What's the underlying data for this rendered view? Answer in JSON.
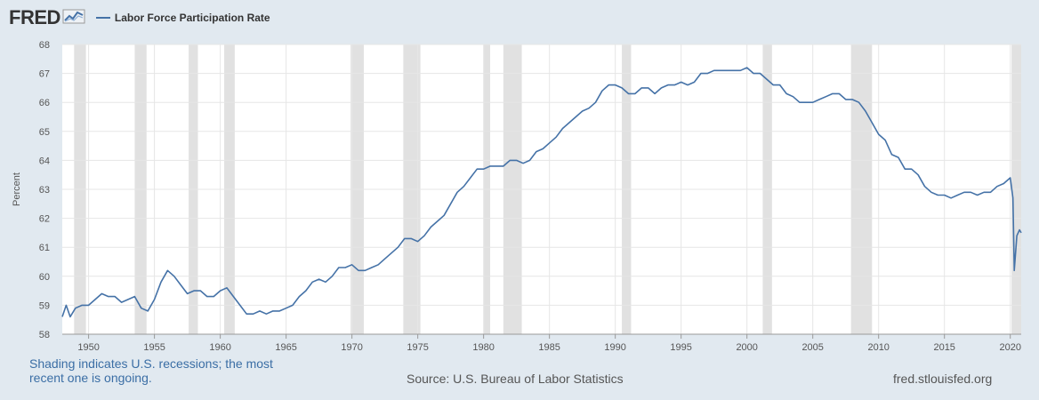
{
  "header": {
    "logo_text": "FRED",
    "logo_icon": "fred-chart-icon",
    "legend_label": "Labor Force Participation Rate"
  },
  "footer": {
    "note": "Shading indicates U.S. recessions; the most recent one is ongoing.",
    "source": "Source: U.S. Bureau of Labor Statistics",
    "site": "fred.stlouisfed.org"
  },
  "colors": {
    "series": "#4572a7",
    "recession": "#e1e1e1",
    "background": "#e1e9f0",
    "plot": "#ffffff",
    "note_text": "#3b6ea5"
  },
  "chart_data": {
    "type": "line",
    "title": "",
    "xlabel": "",
    "ylabel": "Percent",
    "xlim": [
      1948.0,
      2020.83
    ],
    "ylim": [
      58,
      68
    ],
    "x_ticks": [
      "1950",
      "1955",
      "1960",
      "1965",
      "1970",
      "1975",
      "1980",
      "1985",
      "1990",
      "1995",
      "2000",
      "2005",
      "2010",
      "2015",
      "2020"
    ],
    "y_ticks": [
      "58",
      "59",
      "60",
      "61",
      "62",
      "63",
      "64",
      "65",
      "66",
      "67",
      "68"
    ],
    "grid": true,
    "legend": "top-left",
    "recessions": [
      [
        "1948.9",
        "1949.8"
      ],
      [
        "1953.5",
        "1954.4"
      ],
      [
        "1957.6",
        "1958.3"
      ],
      [
        "1960.3",
        "1961.1"
      ],
      [
        "1969.9",
        "1970.9"
      ],
      [
        "1973.9",
        "1975.2"
      ],
      [
        "1980.0",
        "1980.5"
      ],
      [
        "1981.5",
        "1982.9"
      ],
      [
        "1990.5",
        "1991.2"
      ],
      [
        "2001.2",
        "2001.9"
      ],
      [
        "2007.9",
        "2009.5"
      ],
      [
        "2020.1",
        "2020.83"
      ]
    ],
    "series": [
      {
        "name": "Labor Force Participation Rate",
        "x": [
          "1948.0",
          "1948.3",
          "1948.6",
          "1949.0",
          "1949.5",
          "1950.0",
          "1950.5",
          "1951.0",
          "1951.5",
          "1952.0",
          "1952.5",
          "1953.0",
          "1953.5",
          "1954.0",
          "1954.5",
          "1955.0",
          "1955.5",
          "1956.0",
          "1956.5",
          "1957.0",
          "1957.5",
          "1958.0",
          "1958.5",
          "1959.0",
          "1959.5",
          "1960.0",
          "1960.5",
          "1961.0",
          "1961.5",
          "1962.0",
          "1962.5",
          "1963.0",
          "1963.5",
          "1964.0",
          "1964.5",
          "1965.0",
          "1965.5",
          "1966.0",
          "1966.5",
          "1967.0",
          "1967.5",
          "1968.0",
          "1968.5",
          "1969.0",
          "1969.5",
          "1970.0",
          "1970.5",
          "1971.0",
          "1971.5",
          "1972.0",
          "1972.5",
          "1973.0",
          "1973.5",
          "1974.0",
          "1974.5",
          "1975.0",
          "1975.5",
          "1976.0",
          "1976.5",
          "1977.0",
          "1977.5",
          "1978.0",
          "1978.5",
          "1979.0",
          "1979.5",
          "1980.0",
          "1980.5",
          "1981.0",
          "1981.5",
          "1982.0",
          "1982.5",
          "1983.0",
          "1983.5",
          "1984.0",
          "1984.5",
          "1985.0",
          "1985.5",
          "1986.0",
          "1986.5",
          "1987.0",
          "1987.5",
          "1988.0",
          "1988.5",
          "1989.0",
          "1989.5",
          "1990.0",
          "1990.5",
          "1991.0",
          "1991.5",
          "1992.0",
          "1992.5",
          "1993.0",
          "1993.5",
          "1994.0",
          "1994.5",
          "1995.0",
          "1995.5",
          "1996.0",
          "1996.5",
          "1997.0",
          "1997.5",
          "1998.0",
          "1998.5",
          "1999.0",
          "1999.5",
          "2000.0",
          "2000.5",
          "2001.0",
          "2001.5",
          "2002.0",
          "2002.5",
          "2003.0",
          "2003.5",
          "2004.0",
          "2004.5",
          "2005.0",
          "2005.5",
          "2006.0",
          "2006.5",
          "2007.0",
          "2007.5",
          "2008.0",
          "2008.5",
          "2009.0",
          "2009.5",
          "2010.0",
          "2010.5",
          "2011.0",
          "2011.5",
          "2012.0",
          "2012.5",
          "2013.0",
          "2013.5",
          "2014.0",
          "2014.5",
          "2015.0",
          "2015.5",
          "2016.0",
          "2016.5",
          "2017.0",
          "2017.5",
          "2018.0",
          "2018.5",
          "2019.0",
          "2019.5",
          "2020.0",
          "2020.2",
          "2020.3",
          "2020.5",
          "2020.7",
          "2020.83"
        ],
        "y": [
          58.6,
          59.0,
          58.6,
          58.9,
          59.0,
          59.0,
          59.2,
          59.4,
          59.3,
          59.3,
          59.1,
          59.2,
          59.3,
          58.9,
          58.8,
          59.2,
          59.8,
          60.2,
          60.0,
          59.7,
          59.4,
          59.5,
          59.5,
          59.3,
          59.3,
          59.5,
          59.6,
          59.3,
          59.0,
          58.7,
          58.7,
          58.8,
          58.7,
          58.8,
          58.8,
          58.9,
          59.0,
          59.3,
          59.5,
          59.8,
          59.9,
          59.8,
          60.0,
          60.3,
          60.3,
          60.4,
          60.2,
          60.2,
          60.3,
          60.4,
          60.6,
          60.8,
          61.0,
          61.3,
          61.3,
          61.2,
          61.4,
          61.7,
          61.9,
          62.1,
          62.5,
          62.9,
          63.1,
          63.4,
          63.7,
          63.7,
          63.8,
          63.8,
          63.8,
          64.0,
          64.0,
          63.9,
          64.0,
          64.3,
          64.4,
          64.6,
          64.8,
          65.1,
          65.3,
          65.5,
          65.7,
          65.8,
          66.0,
          66.4,
          66.6,
          66.6,
          66.5,
          66.3,
          66.3,
          66.5,
          66.5,
          66.3,
          66.5,
          66.6,
          66.6,
          66.7,
          66.6,
          66.7,
          67.0,
          67.0,
          67.1,
          67.1,
          67.1,
          67.1,
          67.1,
          67.2,
          67.0,
          67.0,
          66.8,
          66.6,
          66.6,
          66.3,
          66.2,
          66.0,
          66.0,
          66.0,
          66.1,
          66.2,
          66.3,
          66.3,
          66.1,
          66.1,
          66.0,
          65.7,
          65.3,
          64.9,
          64.7,
          64.2,
          64.1,
          63.7,
          63.7,
          63.5,
          63.1,
          62.9,
          62.8,
          62.8,
          62.7,
          62.8,
          62.9,
          62.9,
          62.8,
          62.9,
          62.9,
          63.1,
          63.2,
          63.4,
          62.7,
          60.2,
          61.4,
          61.6,
          61.5
        ]
      }
    ]
  }
}
